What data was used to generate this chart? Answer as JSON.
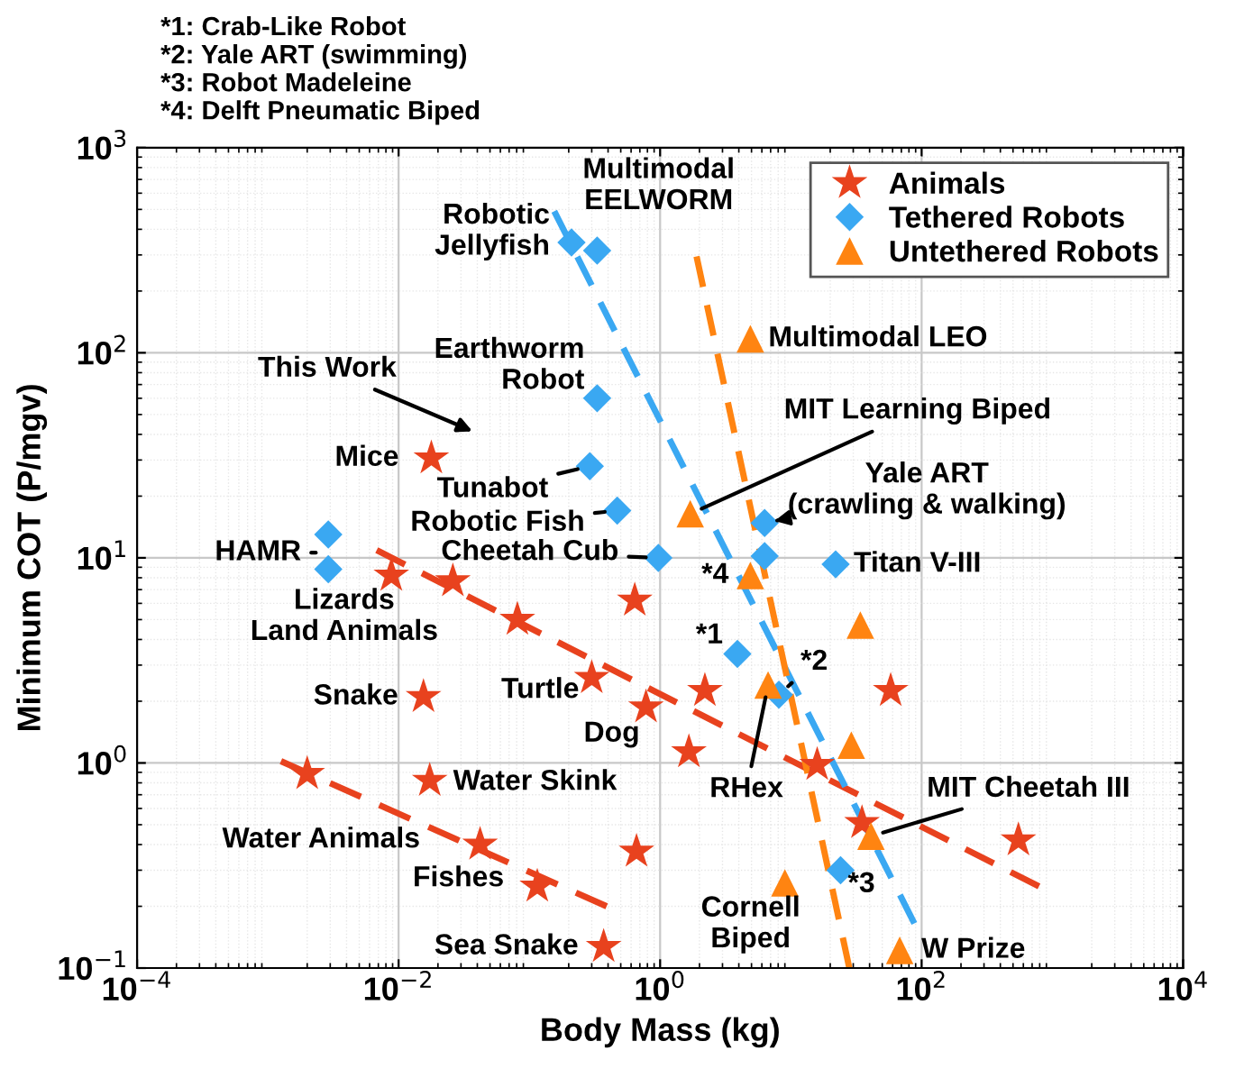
{
  "chart_data": {
    "type": "scatter",
    "xlabel": "Body Mass (kg)",
    "ylabel": "Minimum COT (P/mgv)",
    "log": "xy",
    "grid": true,
    "legend": "top right",
    "xlim": [
      0.0001,
      10000
    ],
    "ylim": [
      0.1,
      1000
    ],
    "xticks": [
      {
        "value": 0.0001,
        "label": "10$^{−4}$"
      },
      {
        "value": 0.01,
        "label": "10$^{−2}$"
      },
      {
        "value": 1,
        "label": "10$^{0}$"
      },
      {
        "value": 100,
        "label": "10$^{2}$"
      },
      {
        "value": 10000,
        "label": "10$^{4}$"
      }
    ],
    "yticks": [
      {
        "value": 0.1,
        "label": "10$^{−1}$"
      },
      {
        "value": 1,
        "label": "10$^{0}$"
      },
      {
        "value": 10,
        "label": "10$^{1}$"
      },
      {
        "value": 100,
        "label": "10$^{2}$"
      },
      {
        "value": 1000,
        "label": "10$^{3}$"
      }
    ],
    "series": [
      {
        "name": "Animals",
        "marker": "star",
        "color": "#e8421e",
        "x": [
          0.0178,
          0.0088,
          0.026,
          0.081,
          0.0155,
          0.3,
          0.64,
          0.78,
          0.0173,
          0.002,
          0.042,
          0.115,
          0.66,
          0.37,
          2.2,
          1.66,
          15.9,
          58,
          35,
          550
        ],
        "values": [
          30.6,
          8.2,
          7.7,
          5.0,
          2.1,
          2.6,
          6.2,
          1.87,
          0.82,
          0.885,
          0.4,
          0.25,
          0.37,
          0.127,
          2.25,
          1.13,
          0.98,
          2.25,
          0.51,
          0.42
        ]
      },
      {
        "name": "Tethered Robots",
        "marker": "diamond",
        "color": "#3aa8f2",
        "x": [
          0.21,
          0.33,
          0.33,
          0.29,
          0.47,
          0.97,
          0.0029,
          0.0029,
          6.3,
          6.3,
          22,
          3.9,
          8.1,
          24
        ],
        "values": [
          345,
          315,
          60,
          28,
          17,
          10,
          13,
          8.8,
          14.8,
          10.2,
          9.3,
          3.4,
          2.15,
          0.3
        ]
      },
      {
        "name": "Untethered Robots",
        "marker": "triangle",
        "color": "#ff8411",
        "x": [
          4.9,
          1.7,
          4.9,
          34,
          6.7,
          29,
          41,
          9,
          68
        ],
        "values": [
          117,
          16.4,
          8.2,
          4.7,
          2.4,
          1.22,
          0.44,
          0.26,
          0.122
        ]
      },
      {
        "type": "line",
        "line_style": "dashed",
        "color": "#e8421e",
        "x": [
          0.0068,
          790
        ],
        "values": [
          10.9,
          0.25
        ]
      },
      {
        "type": "line",
        "line_style": "dashed",
        "color": "#e8421e",
        "x": [
          0.00126,
          0.39
        ],
        "values": [
          1.02,
          0.2
        ]
      },
      {
        "type": "line",
        "line_style": "dashed",
        "color": "#3aa8f2",
        "x": [
          0.155,
          88
        ],
        "values": [
          490,
          0.165
        ]
      },
      {
        "type": "line",
        "line_style": "dashed",
        "color": "#ff8411",
        "x": [
          1.9,
          28
        ],
        "values": [
          295,
          0.1
        ]
      }
    ],
    "annotations": [
      "*1: Crab-Like Robot",
      "*2: Yale ART (swimming)",
      "*3: Robot Madeleine",
      "*4: Delft Pneumatic Biped",
      {
        "text": "Robotic\nJellyfish",
        "x": 0.21,
        "y": 345
      },
      {
        "text": "Multimodal\nEELWORM",
        "x": 1.9,
        "y": 295
      },
      {
        "text": "Earthworm\nRobot",
        "x": 0.33,
        "y": 60
      },
      "This Work",
      {
        "text": "Mice",
        "x": 0.0178,
        "y": 30.6
      },
      {
        "text": "Tunabot",
        "x": 0.29,
        "y": 28
      },
      {
        "text": "Robotic Fish",
        "x": 0.47,
        "y": 17
      },
      {
        "text": "Cheetah Cub",
        "x": 0.97,
        "y": 10
      },
      {
        "text": "HAMR",
        "x": 0.0029,
        "y": 10.6
      },
      {
        "text": "Lizards\nLand Animals",
        "x": 0.0068,
        "y": 10.9
      },
      {
        "text": "Snake",
        "x": 0.0155,
        "y": 2.1
      },
      {
        "text": "Turtle",
        "x": 0.3,
        "y": 2.6
      },
      {
        "text": "Dog",
        "x": 0.78,
        "y": 1.87
      },
      {
        "text": "Water Skink",
        "x": 0.0173,
        "y": 0.82
      },
      "Water Animals",
      {
        "text": "Fishes",
        "x": 0.042,
        "y": 0.4
      },
      {
        "text": "Sea Snake",
        "x": 0.37,
        "y": 0.127
      },
      {
        "text": "Multimodal LEO",
        "x": 4.9,
        "y": 117
      },
      {
        "text": "MIT Learning Biped",
        "x": 1.7,
        "y": 16.4
      },
      {
        "text": "Yale ART\n(crawling & walking)",
        "x": 6.3,
        "y": 14.8
      },
      {
        "text": "Titan V-III",
        "x": 22,
        "y": 9.3
      },
      {
        "text": "*4",
        "x": 4.9,
        "y": 8.2
      },
      {
        "text": "*1",
        "x": 3.9,
        "y": 3.4
      },
      {
        "text": "*2",
        "x": 8.1,
        "y": 2.15
      },
      {
        "text": "RHex",
        "x": 6.7,
        "y": 2.4
      },
      {
        "text": "MIT Cheetah III",
        "x": 41,
        "y": 0.44
      },
      {
        "text": "*3",
        "x": 24,
        "y": 0.3
      },
      {
        "text": "Cornell\nBiped",
        "x": 9,
        "y": 0.26
      },
      {
        "text": "W Prize",
        "x": 68,
        "y": 0.122
      }
    ]
  }
}
